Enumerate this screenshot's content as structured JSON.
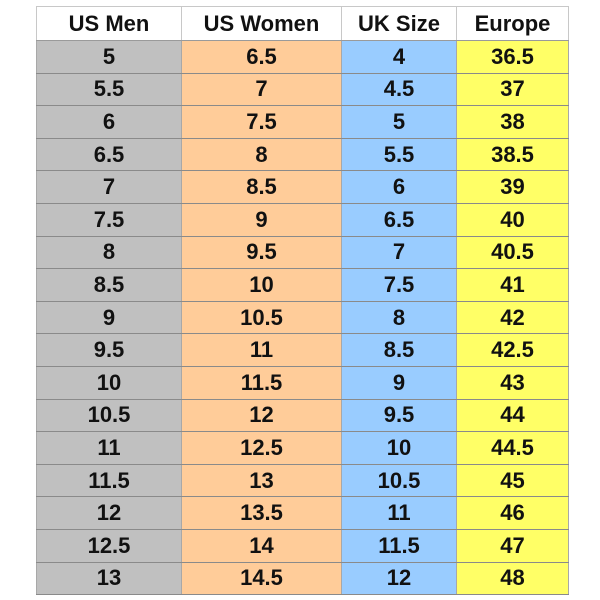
{
  "columns": [
    "US Men",
    "US Women",
    "UK Size",
    "Europe"
  ],
  "colors": {
    "us_men": "#c0c0c0",
    "us_women": "#ffcc99",
    "uk": "#99ccff",
    "europe": "#ffff66"
  },
  "rows": [
    [
      "5",
      "6.5",
      "4",
      "36.5"
    ],
    [
      "5.5",
      "7",
      "4.5",
      "37"
    ],
    [
      "6",
      "7.5",
      "5",
      "38"
    ],
    [
      "6.5",
      "8",
      "5.5",
      "38.5"
    ],
    [
      "7",
      "8.5",
      "6",
      "39"
    ],
    [
      "7.5",
      "9",
      "6.5",
      "40"
    ],
    [
      "8",
      "9.5",
      "7",
      "40.5"
    ],
    [
      "8.5",
      "10",
      "7.5",
      "41"
    ],
    [
      "9",
      "10.5",
      "8",
      "42"
    ],
    [
      "9.5",
      "11",
      "8.5",
      "42.5"
    ],
    [
      "10",
      "11.5",
      "9",
      "43"
    ],
    [
      "10.5",
      "12",
      "9.5",
      "44"
    ],
    [
      "11",
      "12.5",
      "10",
      "44.5"
    ],
    [
      "11.5",
      "13",
      "10.5",
      "45"
    ],
    [
      "12",
      "13.5",
      "11",
      "46"
    ],
    [
      "12.5",
      "14",
      "11.5",
      "47"
    ],
    [
      "13",
      "14.5",
      "12",
      "48"
    ]
  ]
}
